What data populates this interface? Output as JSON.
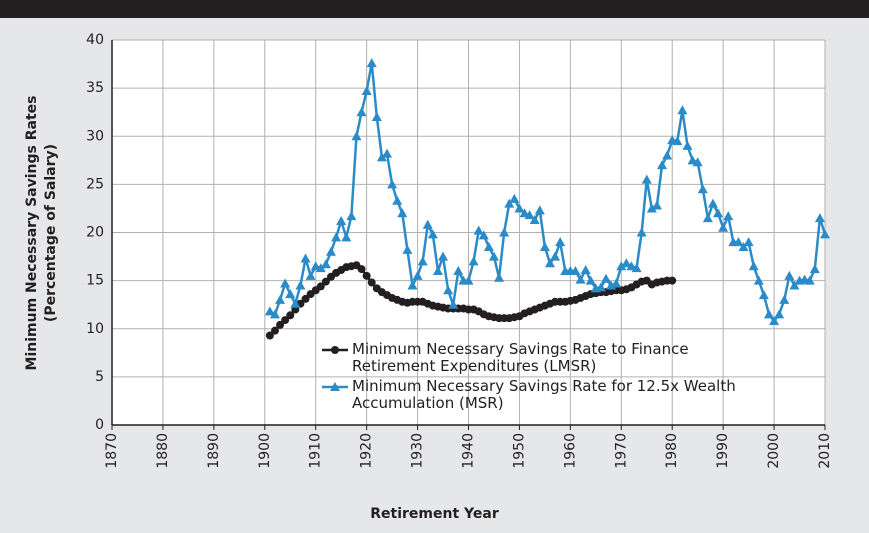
{
  "chart_data": {
    "type": "line",
    "x_label": "Retirement Year",
    "y_label": "Minimum Necessary Savings Rates (Percentage of Salary)",
    "x": [
      1901,
      1902,
      1903,
      1904,
      1905,
      1906,
      1907,
      1908,
      1909,
      1910,
      1911,
      1912,
      1913,
      1914,
      1915,
      1916,
      1917,
      1918,
      1919,
      1920,
      1921,
      1922,
      1923,
      1924,
      1925,
      1926,
      1927,
      1928,
      1929,
      1930,
      1931,
      1932,
      1933,
      1934,
      1935,
      1936,
      1937,
      1938,
      1939,
      1940,
      1941,
      1942,
      1943,
      1944,
      1945,
      1946,
      1947,
      1948,
      1949,
      1950,
      1951,
      1952,
      1953,
      1954,
      1955,
      1956,
      1957,
      1958,
      1959,
      1960,
      1961,
      1962,
      1963,
      1964,
      1965,
      1966,
      1967,
      1968,
      1969,
      1970,
      1971,
      1972,
      1973,
      1974,
      1975,
      1976,
      1977,
      1978,
      1979,
      1980,
      1981,
      1982,
      1983,
      1984,
      1985,
      1986,
      1987,
      1988,
      1989,
      1990,
      1991,
      1992,
      1993,
      1994,
      1995,
      1996,
      1997,
      1998,
      1999,
      2000,
      2001,
      2002,
      2003,
      2004,
      2005,
      2006,
      2007,
      2008,
      2009,
      2010
    ],
    "series": [
      {
        "name": "Minimum Necessary Savings Rate to Finance Retirement Expenditures (LMSR)",
        "color": "#231f20",
        "marker": "circle",
        "values": [
          9.3,
          9.8,
          10.4,
          10.9,
          11.4,
          12,
          12.6,
          13.1,
          13.6,
          14,
          14.4,
          14.9,
          15.4,
          15.8,
          16.1,
          16.4,
          16.5,
          16.6,
          16.2,
          15.5,
          14.8,
          14.2,
          13.8,
          13.5,
          13.2,
          13,
          12.8,
          12.7,
          12.8,
          12.8,
          12.8,
          12.6,
          12.4,
          12.3,
          12.2,
          12.1,
          12.1,
          12.1,
          12.1,
          12,
          12,
          11.8,
          11.5,
          11.3,
          11.2,
          11.1,
          11.1,
          11.1,
          11.2,
          11.3,
          11.6,
          11.8,
          12,
          12.2,
          12.4,
          12.6,
          12.8,
          12.8,
          12.8,
          12.9,
          13,
          13.2,
          13.4,
          13.6,
          13.7,
          13.8,
          13.8,
          13.9,
          14,
          14,
          14.1,
          14.3,
          14.6,
          14.9,
          15,
          14.6,
          14.8,
          14.9,
          15,
          15,
          null,
          null,
          null,
          null,
          null,
          null,
          null,
          null,
          null,
          null,
          null,
          null,
          null,
          null,
          null,
          null,
          null,
          null,
          null,
          null,
          null,
          null,
          null,
          null,
          null,
          null,
          null,
          null,
          null,
          null
        ]
      },
      {
        "name": "Minimum Necessary Savings Rate for 12.5x Wealth Accumulation (MSR)",
        "color": "#2a8bc8",
        "marker": "triangle",
        "values": [
          11.8,
          11.5,
          13,
          14.7,
          13.6,
          12.6,
          14.5,
          17.3,
          15.5,
          16.5,
          16.3,
          16.7,
          18,
          19.5,
          21.2,
          19.5,
          21.7,
          30,
          32.5,
          34.7,
          37.6,
          32,
          27.8,
          28.2,
          25,
          23.3,
          22,
          18.2,
          14.5,
          15.5,
          17,
          20.8,
          19.8,
          16,
          17.5,
          14,
          12.5,
          16,
          15,
          15,
          17,
          20.2,
          19.7,
          18.5,
          17.5,
          15.3,
          20,
          23,
          23.5,
          22.5,
          22,
          21.8,
          21.3,
          22.3,
          18.5,
          16.8,
          17.5,
          19,
          16,
          16,
          16,
          15.1,
          16.1,
          15,
          14.2,
          14.3,
          15.2,
          14.5,
          14.7,
          16.5,
          16.8,
          16.5,
          16.3,
          20,
          25.5,
          22.5,
          22.8,
          27,
          28,
          29.6,
          29.5,
          32.7,
          29,
          27.5,
          27.3,
          24.5,
          21.5,
          23,
          22,
          20.5,
          21.7,
          19,
          19,
          18.5,
          19,
          16.5,
          15,
          13.5,
          11.5,
          10.8,
          11.5,
          13,
          15.5,
          14.5,
          15,
          15.1,
          15,
          16.2,
          21.5,
          19.8
        ]
      }
    ],
    "xlim": [
      1870,
      2010
    ],
    "xticks": [
      1870,
      1880,
      1890,
      1900,
      1910,
      1920,
      1930,
      1940,
      1950,
      1960,
      1970,
      1980,
      1990,
      2000,
      2010
    ],
    "ylim": [
      0,
      40
    ],
    "yticks": [
      0,
      5,
      10,
      15,
      20,
      25,
      30,
      35,
      40
    ],
    "grid": true
  }
}
